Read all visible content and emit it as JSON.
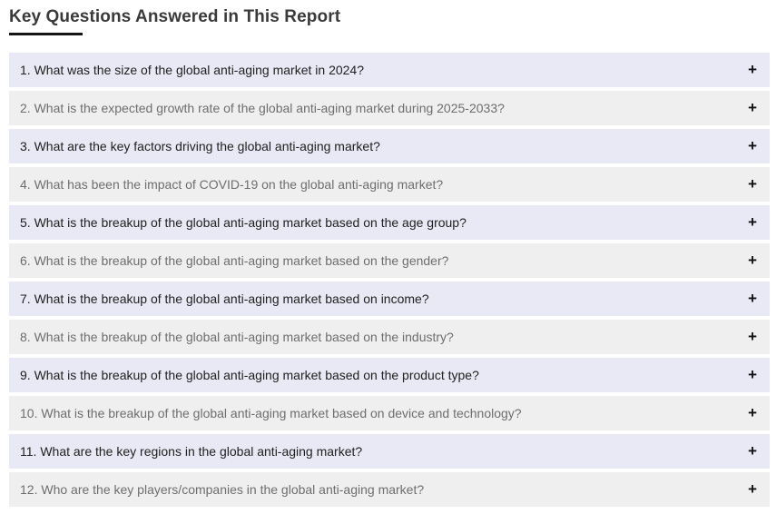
{
  "page": {
    "title": "Key Questions Answered in This Report"
  },
  "accordion": {
    "expand_icon": "+",
    "items": [
      {
        "label": "1. What was the size of the global anti-aging market in 2024?"
      },
      {
        "label": "2. What is the expected growth rate of the global anti-aging market during 2025-2033?"
      },
      {
        "label": "3. What are the key factors driving the global anti-aging market?"
      },
      {
        "label": "4. What has been the impact of COVID-19 on the global anti-aging market?"
      },
      {
        "label": "5. What is the breakup of the global anti-aging market based on the age group?"
      },
      {
        "label": "6. What is the breakup of the global anti-aging market based on the gender?"
      },
      {
        "label": "7. What is the breakup of the global anti-aging market based on income?"
      },
      {
        "label": "8. What is the breakup of the global anti-aging market based on the industry?"
      },
      {
        "label": "9. What is the breakup of the global anti-aging market based on the product type?"
      },
      {
        "label": "10. What is the breakup of the global anti-aging market based on device and technology?"
      },
      {
        "label": "11. What are the key regions in the global anti-aging market?"
      },
      {
        "label": "12. Who are the key players/companies in the global anti-aging market?"
      }
    ]
  },
  "colors": {
    "row_odd_bg": "#e8e9f5",
    "row_even_bg": "#efefef",
    "row_odd_text": "#212121",
    "row_even_text": "#6e6e6e",
    "heading_text": "#3a3a3a",
    "heading_underline": "#141414",
    "icon": "#111111"
  }
}
